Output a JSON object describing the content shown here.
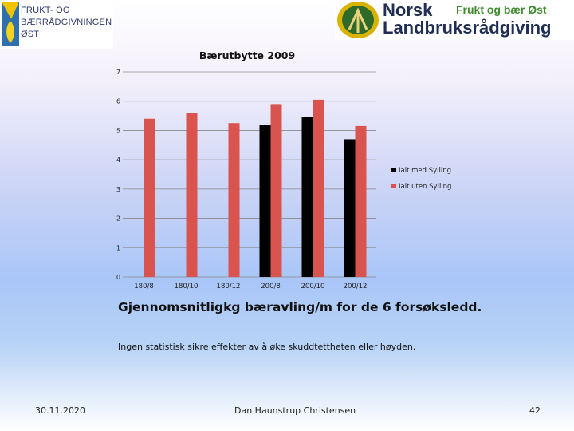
{
  "logos": {
    "left_lines": [
      "FRUKT- OG",
      "BÆRRÅDGIVNINGEN",
      "ØST"
    ],
    "right_line1": "Norsk",
    "right_line2": "Landbruksrådgiving",
    "right_sub": "Frukt og bær Øst"
  },
  "chart_data": {
    "type": "bar",
    "title": "Bærutbytte 2009",
    "categories": [
      "180/8",
      "180/10",
      "180/12",
      "200/8",
      "200/10",
      "200/12"
    ],
    "series": [
      {
        "name": "Ialt med Sylling",
        "color": "#000000",
        "values": [
          null,
          null,
          null,
          5.2,
          5.45,
          4.7
        ]
      },
      {
        "name": "Ialt uten Sylling",
        "color": "#d9534f",
        "values": [
          5.4,
          5.6,
          5.25,
          5.9,
          6.05,
          5.15
        ]
      }
    ],
    "ylim": [
      0,
      7
    ],
    "yticks": [
      0,
      1,
      2,
      3,
      4,
      5,
      6,
      7
    ],
    "grid": true,
    "legend": "right"
  },
  "caption": "Gjennomsnitligkg bæravling/m for de 6 forsøksledd.",
  "note": "Ingen statistisk sikre effekter av å øke skuddtettheten eller høyden.",
  "footer": {
    "date": "30.11.2020",
    "author": "Dan Haunstrup Christensen",
    "page": "42"
  }
}
